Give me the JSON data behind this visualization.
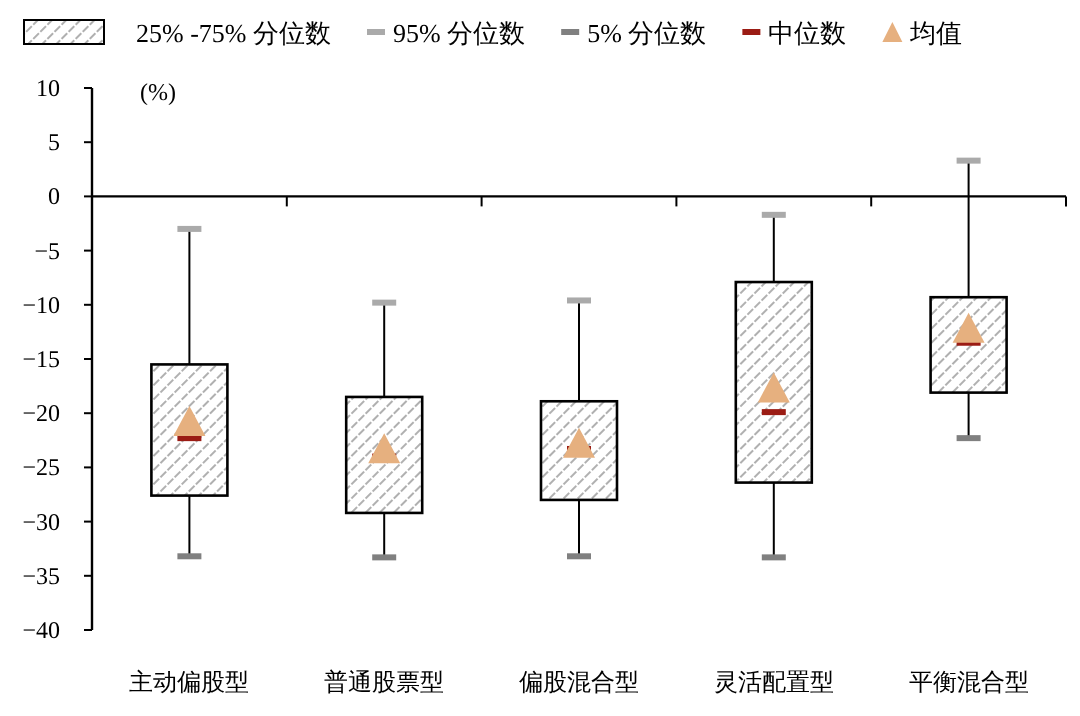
{
  "chart_data": {
    "type": "box",
    "categories": [
      "主动偏股型",
      "普通股票型",
      "偏股混合型",
      "灵活配置型",
      "平衡混合型"
    ],
    "ylabel": "(%)",
    "ylim": [
      -40,
      10
    ],
    "yticks": [
      10,
      5,
      0,
      -5,
      -10,
      -15,
      -20,
      -25,
      -30,
      -35,
      -40
    ],
    "legend": "top",
    "annotations": [
      "95% 分位数",
      "5% 分位数",
      "中位数",
      "均值"
    ],
    "series": [
      {
        "name": "25% -75% 分位数",
        "boxes": [
          {
            "low": -33.2,
            "q1": -27.6,
            "median": -22.3,
            "q3": -15.5,
            "high": -3,
            "mean": -21
          },
          {
            "low": -33.3,
            "q1": -29.2,
            "median": -24,
            "q3": -18.5,
            "high": -9.8,
            "mean": -23.5
          },
          {
            "low": -33.2,
            "q1": -28,
            "median": -23.3,
            "q3": -18.9,
            "high": -9.6,
            "mean": -23
          },
          {
            "low": -33.3,
            "q1": -26.4,
            "median": -19.9,
            "q3": -7.9,
            "high": -1.7,
            "mean": -17.9
          },
          {
            "low": -22.3,
            "q1": -18.1,
            "median": -13.5,
            "q3": -9.3,
            "high": 3.3,
            "mean": -12.4
          }
        ]
      }
    ]
  }
}
